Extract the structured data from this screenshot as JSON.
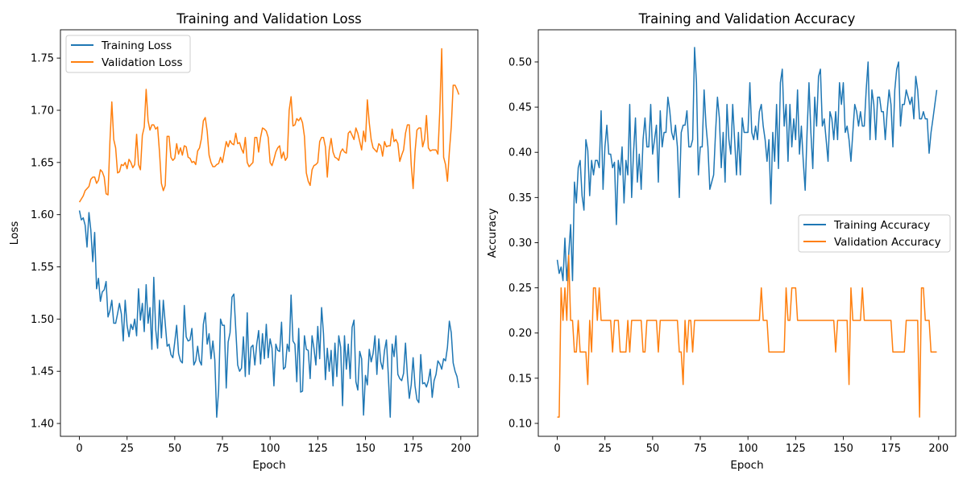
{
  "chart_data": [
    {
      "type": "line",
      "title": "Training and Validation Loss",
      "xlabel": "Epoch",
      "ylabel": "Loss",
      "xlim": [
        -9.95,
        208.95
      ],
      "ylim": [
        1.3877,
        1.7771
      ],
      "x_ticks": [
        "0",
        "25",
        "50",
        "75",
        "100",
        "125",
        "150",
        "175",
        "200"
      ],
      "x_tick_values": [
        0,
        25,
        50,
        75,
        100,
        125,
        150,
        175,
        200
      ],
      "y_ticks": [
        "1.40",
        "1.45",
        "1.50",
        "1.55",
        "1.60",
        "1.65",
        "1.70",
        "1.75"
      ],
      "y_tick_values": [
        1.4,
        1.45,
        1.5,
        1.55,
        1.6,
        1.65,
        1.7,
        1.75
      ],
      "grid": false,
      "legend": "upper left",
      "series": [
        {
          "name": "Training Loss",
          "color": "#1f77b4",
          "values": [
            1.604,
            1.595,
            1.597,
            1.59,
            1.569,
            1.602,
            1.585,
            1.555,
            1.583,
            1.529,
            1.539,
            1.517,
            1.526,
            1.528,
            1.536,
            1.502,
            1.508,
            1.518,
            1.496,
            1.496,
            1.505,
            1.515,
            1.505,
            1.479,
            1.518,
            1.494,
            1.483,
            1.495,
            1.49,
            1.5,
            1.484,
            1.529,
            1.499,
            1.515,
            1.488,
            1.533,
            1.496,
            1.511,
            1.471,
            1.54,
            1.49,
            1.472,
            1.518,
            1.482,
            1.518,
            1.496,
            1.474,
            1.476,
            1.466,
            1.463,
            1.478,
            1.494,
            1.467,
            1.46,
            1.458,
            1.513,
            1.483,
            1.479,
            1.48,
            1.491,
            1.456,
            1.46,
            1.474,
            1.46,
            1.456,
            1.495,
            1.506,
            1.476,
            1.486,
            1.462,
            1.479,
            1.461,
            1.406,
            1.432,
            1.5,
            1.494,
            1.494,
            1.434,
            1.478,
            1.487,
            1.521,
            1.524,
            1.49,
            1.456,
            1.45,
            1.453,
            1.483,
            1.445,
            1.506,
            1.447,
            1.473,
            1.475,
            1.456,
            1.476,
            1.489,
            1.457,
            1.486,
            1.462,
            1.495,
            1.463,
            1.481,
            1.472,
            1.436,
            1.476,
            1.47,
            1.469,
            1.497,
            1.452,
            1.454,
            1.476,
            1.469,
            1.523,
            1.479,
            1.476,
            1.44,
            1.491,
            1.43,
            1.431,
            1.484,
            1.471,
            1.47,
            1.443,
            1.484,
            1.472,
            1.456,
            1.493,
            1.462,
            1.511,
            1.486,
            1.442,
            1.472,
            1.45,
            1.47,
            1.436,
            1.477,
            1.445,
            1.484,
            1.473,
            1.417,
            1.484,
            1.452,
            1.476,
            1.443,
            1.492,
            1.499,
            1.44,
            1.432,
            1.469,
            1.462,
            1.408,
            1.446,
            1.437,
            1.471,
            1.459,
            1.467,
            1.484,
            1.447,
            1.481,
            1.459,
            1.452,
            1.47,
            1.48,
            1.446,
            1.406,
            1.476,
            1.464,
            1.484,
            1.447,
            1.443,
            1.441,
            1.448,
            1.477,
            1.446,
            1.424,
            1.437,
            1.463,
            1.436,
            1.423,
            1.42,
            1.466,
            1.438,
            1.439,
            1.435,
            1.441,
            1.452,
            1.425,
            1.441,
            1.447,
            1.46,
            1.457,
            1.452,
            1.462,
            1.46,
            1.473,
            1.498,
            1.487,
            1.458,
            1.45,
            1.445,
            1.434
          ]
        },
        {
          "name": "Validation Loss",
          "color": "#ff7f0e",
          "values": [
            1.612,
            1.615,
            1.618,
            1.623,
            1.625,
            1.627,
            1.634,
            1.636,
            1.636,
            1.63,
            1.633,
            1.643,
            1.641,
            1.636,
            1.62,
            1.619,
            1.67,
            1.708,
            1.672,
            1.664,
            1.64,
            1.641,
            1.648,
            1.647,
            1.65,
            1.644,
            1.653,
            1.65,
            1.645,
            1.648,
            1.677,
            1.648,
            1.643,
            1.676,
            1.684,
            1.72,
            1.69,
            1.681,
            1.686,
            1.686,
            1.682,
            1.684,
            1.66,
            1.63,
            1.623,
            1.628,
            1.675,
            1.675,
            1.655,
            1.652,
            1.654,
            1.668,
            1.658,
            1.664,
            1.657,
            1.666,
            1.665,
            1.655,
            1.654,
            1.65,
            1.651,
            1.648,
            1.661,
            1.664,
            1.673,
            1.69,
            1.693,
            1.68,
            1.657,
            1.65,
            1.646,
            1.646,
            1.648,
            1.649,
            1.655,
            1.65,
            1.66,
            1.67,
            1.665,
            1.671,
            1.668,
            1.667,
            1.678,
            1.668,
            1.669,
            1.663,
            1.659,
            1.674,
            1.65,
            1.646,
            1.648,
            1.65,
            1.674,
            1.674,
            1.66,
            1.674,
            1.683,
            1.682,
            1.68,
            1.674,
            1.65,
            1.647,
            1.653,
            1.66,
            1.664,
            1.666,
            1.654,
            1.66,
            1.652,
            1.655,
            1.7,
            1.713,
            1.685,
            1.686,
            1.692,
            1.69,
            1.693,
            1.688,
            1.675,
            1.64,
            1.632,
            1.628,
            1.643,
            1.647,
            1.648,
            1.65,
            1.67,
            1.674,
            1.674,
            1.665,
            1.636,
            1.662,
            1.673,
            1.66,
            1.655,
            1.654,
            1.652,
            1.66,
            1.663,
            1.66,
            1.659,
            1.678,
            1.68,
            1.676,
            1.672,
            1.683,
            1.678,
            1.67,
            1.662,
            1.68,
            1.67,
            1.71,
            1.688,
            1.672,
            1.664,
            1.662,
            1.66,
            1.668,
            1.666,
            1.656,
            1.67,
            1.665,
            1.666,
            1.666,
            1.682,
            1.67,
            1.672,
            1.668,
            1.651,
            1.657,
            1.662,
            1.678,
            1.686,
            1.686,
            1.648,
            1.625,
            1.66,
            1.681,
            1.683,
            1.683,
            1.665,
            1.672,
            1.695,
            1.664,
            1.661,
            1.662,
            1.662,
            1.662,
            1.658,
            1.7,
            1.759,
            1.655,
            1.648,
            1.632,
            1.66,
            1.684,
            1.724,
            1.724,
            1.72,
            1.715
          ]
        }
      ]
    },
    {
      "type": "line",
      "title": "Training and Validation Accuracy",
      "xlabel": "Epoch",
      "ylabel": "Accuracy",
      "xlim": [
        -9.95,
        208.95
      ],
      "ylim": [
        0.0857,
        0.5356
      ],
      "x_ticks": [
        "0",
        "25",
        "50",
        "75",
        "100",
        "125",
        "150",
        "175",
        "200"
      ],
      "x_tick_values": [
        0,
        25,
        50,
        75,
        100,
        125,
        150,
        175,
        200
      ],
      "y_ticks": [
        "0.10",
        "0.15",
        "0.20",
        "0.25",
        "0.30",
        "0.35",
        "0.40",
        "0.45",
        "0.50"
      ],
      "y_tick_values": [
        0.1,
        0.15,
        0.2,
        0.25,
        0.3,
        0.35,
        0.4,
        0.45,
        0.5
      ],
      "grid": false,
      "legend": "center right",
      "series": [
        {
          "name": "Training Accuracy",
          "color": "#1f77b4",
          "values": [
            0.281,
            0.266,
            0.273,
            0.258,
            0.305,
            0.258,
            0.287,
            0.32,
            0.258,
            0.367,
            0.344,
            0.383,
            0.391,
            0.352,
            0.336,
            0.414,
            0.402,
            0.352,
            0.391,
            0.375,
            0.391,
            0.391,
            0.383,
            0.446,
            0.359,
            0.406,
            0.43,
            0.398,
            0.398,
            0.383,
            0.389,
            0.32,
            0.391,
            0.375,
            0.406,
            0.344,
            0.391,
            0.375,
            0.453,
            0.35,
            0.4,
            0.438,
            0.367,
            0.398,
            0.359,
            0.414,
            0.438,
            0.406,
            0.406,
            0.453,
            0.398,
            0.414,
            0.43,
            0.367,
            0.446,
            0.406,
            0.422,
            0.422,
            0.461,
            0.446,
            0.422,
            0.414,
            0.43,
            0.406,
            0.35,
            0.422,
            0.43,
            0.43,
            0.446,
            0.406,
            0.406,
            0.414,
            0.516,
            0.477,
            0.375,
            0.406,
            0.406,
            0.469,
            0.43,
            0.406,
            0.359,
            0.367,
            0.375,
            0.422,
            0.461,
            0.438,
            0.383,
            0.422,
            0.367,
            0.453,
            0.414,
            0.398,
            0.453,
            0.414,
            0.375,
            0.422,
            0.375,
            0.438,
            0.422,
            0.422,
            0.422,
            0.477,
            0.422,
            0.414,
            0.429,
            0.414,
            0.445,
            0.453,
            0.429,
            0.414,
            0.39,
            0.414,
            0.343,
            0.422,
            0.39,
            0.453,
            0.382,
            0.477,
            0.492,
            0.429,
            0.453,
            0.39,
            0.453,
            0.406,
            0.437,
            0.414,
            0.469,
            0.398,
            0.429,
            0.39,
            0.358,
            0.422,
            0.477,
            0.422,
            0.382,
            0.461,
            0.429,
            0.484,
            0.492,
            0.429,
            0.437,
            0.414,
            0.39,
            0.445,
            0.437,
            0.414,
            0.445,
            0.414,
            0.477,
            0.453,
            0.477,
            0.422,
            0.429,
            0.414,
            0.39,
            0.422,
            0.453,
            0.445,
            0.429,
            0.445,
            0.429,
            0.429,
            0.469,
            0.5,
            0.414,
            0.469,
            0.453,
            0.414,
            0.461,
            0.461,
            0.445,
            0.445,
            0.414,
            0.445,
            0.469,
            0.453,
            0.406,
            0.469,
            0.492,
            0.5,
            0.429,
            0.453,
            0.453,
            0.469,
            0.461,
            0.453,
            0.461,
            0.437,
            0.484,
            0.469,
            0.437,
            0.437,
            0.445,
            0.437,
            0.437,
            0.399,
            0.422,
            0.437,
            0.453,
            0.469
          ]
        },
        {
          "name": "Validation Accuracy",
          "color": "#ff7f0e",
          "values": [
            0.107,
            0.107,
            0.25,
            0.214,
            0.25,
            0.214,
            0.286,
            0.214,
            0.214,
            0.179,
            0.179,
            0.214,
            0.179,
            0.179,
            0.179,
            0.179,
            0.143,
            0.214,
            0.179,
            0.25,
            0.25,
            0.214,
            0.25,
            0.214,
            0.214,
            0.214,
            0.214,
            0.214,
            0.214,
            0.179,
            0.214,
            0.214,
            0.214,
            0.179,
            0.179,
            0.179,
            0.179,
            0.214,
            0.179,
            0.214,
            0.214,
            0.214,
            0.214,
            0.214,
            0.214,
            0.179,
            0.179,
            0.214,
            0.214,
            0.214,
            0.214,
            0.214,
            0.214,
            0.179,
            0.214,
            0.214,
            0.214,
            0.214,
            0.214,
            0.214,
            0.214,
            0.214,
            0.214,
            0.214,
            0.179,
            0.179,
            0.143,
            0.214,
            0.179,
            0.214,
            0.214,
            0.179,
            0.214,
            0.214,
            0.214,
            0.214,
            0.214,
            0.214,
            0.214,
            0.214,
            0.214,
            0.214,
            0.214,
            0.214,
            0.214,
            0.214,
            0.214,
            0.214,
            0.214,
            0.214,
            0.214,
            0.214,
            0.214,
            0.214,
            0.214,
            0.214,
            0.214,
            0.214,
            0.214,
            0.214,
            0.214,
            0.214,
            0.214,
            0.214,
            0.214,
            0.214,
            0.214,
            0.25,
            0.214,
            0.214,
            0.214,
            0.179,
            0.179,
            0.179,
            0.179,
            0.179,
            0.179,
            0.179,
            0.179,
            0.179,
            0.25,
            0.214,
            0.214,
            0.25,
            0.25,
            0.25,
            0.214,
            0.214,
            0.214,
            0.214,
            0.214,
            0.214,
            0.214,
            0.214,
            0.214,
            0.214,
            0.214,
            0.214,
            0.214,
            0.214,
            0.214,
            0.214,
            0.214,
            0.214,
            0.214,
            0.214,
            0.179,
            0.214,
            0.214,
            0.214,
            0.214,
            0.214,
            0.214,
            0.143,
            0.25,
            0.214,
            0.214,
            0.214,
            0.214,
            0.214,
            0.25,
            0.214,
            0.214,
            0.214,
            0.214,
            0.214,
            0.214,
            0.214,
            0.214,
            0.214,
            0.214,
            0.214,
            0.214,
            0.214,
            0.214,
            0.214,
            0.179,
            0.179,
            0.179,
            0.179,
            0.179,
            0.179,
            0.179,
            0.214,
            0.214,
            0.214,
            0.214,
            0.214,
            0.214,
            0.214,
            0.107,
            0.25,
            0.25,
            0.214,
            0.214,
            0.214,
            0.179,
            0.179,
            0.179,
            0.179
          ]
        }
      ]
    }
  ]
}
